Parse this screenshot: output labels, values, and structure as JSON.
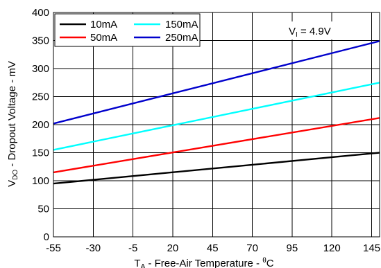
{
  "chart_data": {
    "type": "line",
    "x_ticks": [
      -55,
      -30,
      -5,
      20,
      45,
      70,
      95,
      120,
      145
    ],
    "y_ticks": [
      0,
      50,
      100,
      150,
      200,
      250,
      300,
      350,
      400
    ],
    "xlim": [
      -55,
      150
    ],
    "ylim": [
      0,
      400
    ],
    "grid": true,
    "xlabel": {
      "main": "T",
      "sub": "A",
      "rest": " - Free-Air Temperature - ",
      "sup": "θ",
      "unit": "C"
    },
    "ylabel": {
      "main": "V",
      "sub": "DO",
      "rest": " - Dropout Voltage - mV"
    },
    "annotation": {
      "main": "V",
      "sub": "I",
      "rest": " = 4.9V"
    },
    "legend_position": "top-left",
    "series": [
      {
        "name": "10mA",
        "color": "#000000",
        "x": [
          -55,
          150
        ],
        "y": [
          95,
          150
        ]
      },
      {
        "name": "50mA",
        "color": "#ff0000",
        "x": [
          -55,
          150
        ],
        "y": [
          115,
          212
        ]
      },
      {
        "name": "150mA",
        "color": "#00ffff",
        "x": [
          -55,
          150
        ],
        "y": [
          155,
          275
        ]
      },
      {
        "name": "250mA",
        "color": "#0000cc",
        "x": [
          -55,
          150
        ],
        "y": [
          202,
          349
        ]
      }
    ]
  }
}
